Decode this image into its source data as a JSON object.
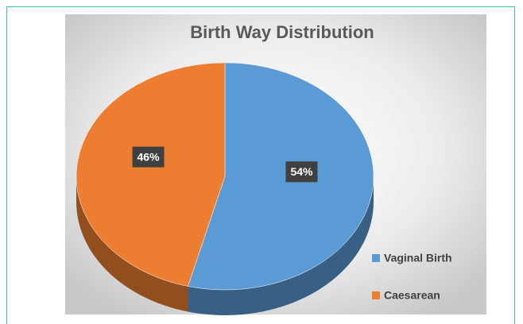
{
  "chart_data": {
    "type": "pie",
    "title": "Birth Way Distribution",
    "categories": [
      "Vaginal Birth",
      "Caesarean"
    ],
    "values": [
      54,
      46
    ],
    "value_labels": [
      "54%",
      "46%"
    ],
    "colors": [
      "#5b9bd5",
      "#ed7d31"
    ],
    "legend": "bottom-right",
    "three_d": true
  }
}
